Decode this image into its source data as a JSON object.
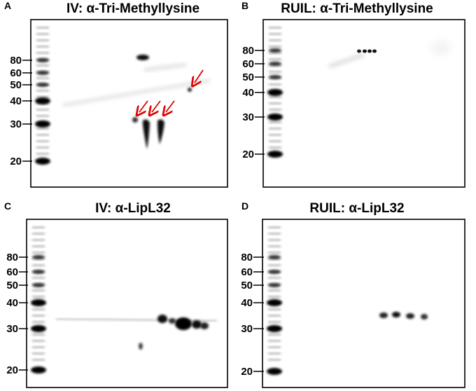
{
  "panels": [
    {
      "letter": "A",
      "title": "IV: α-Tri-Methyllysine",
      "markers": [
        "80",
        "60",
        "50",
        "40",
        "30",
        "20"
      ]
    },
    {
      "letter": "B",
      "title": "RUIL: α-Tri-Methyllysine",
      "markers": [
        "80",
        "60",
        "50",
        "40",
        "30",
        "20"
      ]
    },
    {
      "letter": "C",
      "title": "IV: α-LipL32",
      "markers": [
        "80",
        "60",
        "50",
        "40",
        "30",
        "20"
      ]
    },
    {
      "letter": "D",
      "title": "RUIL: α-LipL32",
      "markers": [
        "80",
        "60",
        "50",
        "40",
        "30",
        "20"
      ]
    }
  ]
}
